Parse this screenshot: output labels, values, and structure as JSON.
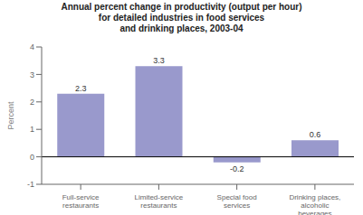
{
  "chart_data": {
    "type": "bar",
    "title": "Annual percent change in productivity (output per hour)\nfor detailed industries in food services\nand drinking places, 2003-04",
    "categories": [
      "Full-service\nrestaurants",
      "Limited-service\nrestaurants",
      "Special food\nservices",
      "Drinking places,\nalcoholic\nbeverages"
    ],
    "values": [
      2.3,
      3.3,
      -0.2,
      0.6
    ],
    "color": "#9999cc",
    "ylabel": "Percent",
    "ylim": [
      -1,
      4
    ],
    "yticks": [
      -1,
      0,
      1,
      2,
      3,
      4
    ],
    "grid": false,
    "data_labels": true
  }
}
